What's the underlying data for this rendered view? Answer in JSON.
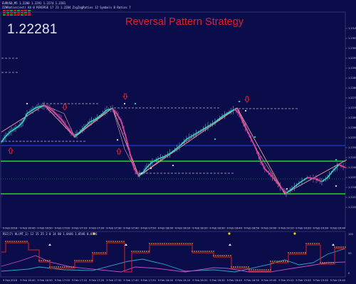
{
  "header": {
    "symbol_line": "EURUSD,M5  1.2280 1.2291 1.2274 1.2281",
    "indicator_line": "ZZHRatios(ext) 84 0 REVERSE 17 23 1.2284 ZigZagRatios 12 Symbols B Ratios 7",
    "price": "1.22281",
    "title": "Reversal Pattern Strategy"
  },
  "subwindow": {
    "label": "RSI(7) HL(MT_1) 12 15 25 2 0 14 80 1.0446 1.0546 0.0156"
  },
  "price_axis": [
    "1.2310",
    "1.2305",
    "1.2300",
    "1.2295",
    "1.2290",
    "1.2285",
    "1.2280",
    "1.2275",
    "1.2270",
    "1.2265",
    "1.2260",
    "1.2255",
    "1.2250",
    "1.2245",
    "1.2240",
    "1.2235",
    "1.2230",
    "1.2225",
    "1.2220"
  ],
  "sub_axis": [
    "100",
    "50",
    "0"
  ],
  "time_axis": [
    "9 Feb 2018",
    "9 Feb 16:40",
    "9 Feb 16:50",
    "9 Feb 17:00",
    "9 Feb 17:10",
    "9 Feb 17:20",
    "9 Feb 17:30",
    "9 Feb 17:40",
    "9 Feb 17:50",
    "9 Feb 18:00",
    "9 Feb 18:10",
    "9 Feb 18:20",
    "9 Feb 18:30",
    "9 Feb 18:40",
    "9 Feb 18:50",
    "9 Feb 19:00",
    "9 Feb 19:10",
    "9 Feb 19:20",
    "9 Feb 19:30",
    "9 Feb 19:40"
  ],
  "colors": {
    "background": "#0b0c4a",
    "up_line": "#2fd6c8",
    "down_line": "#e8379e",
    "zigzag": "#f0a0a0",
    "arrow": "#e0202a",
    "level_blue": "#1b3cd0",
    "level_green": "#2bd12b",
    "dashed": "#b8b8d0"
  }
}
